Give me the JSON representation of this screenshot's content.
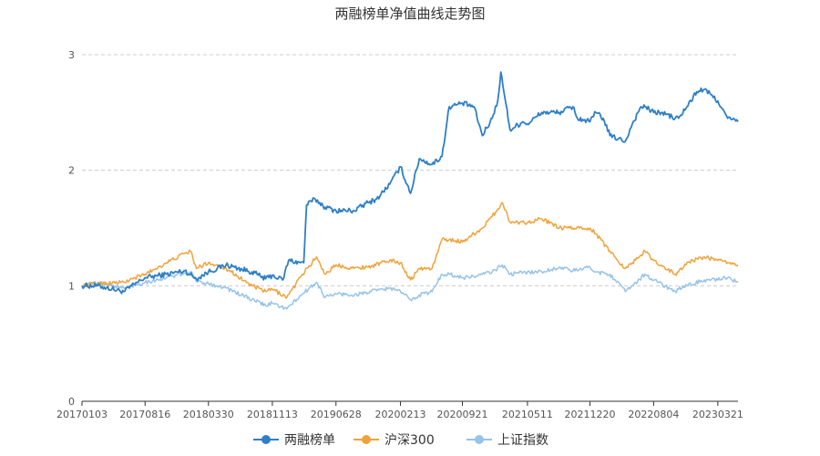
{
  "chart_data": {
    "type": "line",
    "title": "两融榜单净值曲线走势图",
    "xlabel": "",
    "ylabel": "",
    "ylim": [
      0,
      3
    ],
    "yticks": [
      0,
      1,
      2,
      3
    ],
    "grid": true,
    "legend_position": "bottom",
    "x_ticks": [
      "20170103",
      "20170816",
      "20180330",
      "20181113",
      "20190628",
      "20200213",
      "20200921",
      "20210511",
      "20211220",
      "20220804",
      "20230321"
    ],
    "x_end": "20230601",
    "series": [
      {
        "name": "两融榜单",
        "color": "#2e7fc6",
        "points": [
          [
            "20170103",
            1.0
          ],
          [
            "20170301",
            1.0
          ],
          [
            "20170601",
            0.95
          ],
          [
            "20170816",
            1.07
          ],
          [
            "20171101",
            1.1
          ],
          [
            "20180105",
            1.13
          ],
          [
            "20180215",
            1.06
          ],
          [
            "20180330",
            1.12
          ],
          [
            "20180601",
            1.18
          ],
          [
            "20180901",
            1.12
          ],
          [
            "20181020",
            1.06
          ],
          [
            "20181113",
            1.09
          ],
          [
            "20181220",
            1.05
          ],
          [
            "20190110",
            1.22
          ],
          [
            "20190220",
            1.2
          ],
          [
            "20190305",
            1.2
          ],
          [
            "20190315",
            1.7
          ],
          [
            "20190415",
            1.75
          ],
          [
            "20190520",
            1.68
          ],
          [
            "20190628",
            1.65
          ],
          [
            "20190901",
            1.65
          ],
          [
            "20191020",
            1.72
          ],
          [
            "20191120",
            1.75
          ],
          [
            "20200106",
            1.88
          ],
          [
            "20200213",
            2.03
          ],
          [
            "20200320",
            1.8
          ],
          [
            "20200420",
            2.1
          ],
          [
            "20200605",
            2.05
          ],
          [
            "20200710",
            2.12
          ],
          [
            "20200805",
            2.55
          ],
          [
            "20200921",
            2.58
          ],
          [
            "20201101",
            2.55
          ],
          [
            "20201201",
            2.3
          ],
          [
            "20210105",
            2.45
          ],
          [
            "20210125",
            2.6
          ],
          [
            "20210205",
            2.85
          ],
          [
            "20210220",
            2.62
          ],
          [
            "20210310",
            2.35
          ],
          [
            "20210425",
            2.42
          ],
          [
            "20210511",
            2.4
          ],
          [
            "20210701",
            2.5
          ],
          [
            "20210901",
            2.5
          ],
          [
            "20211020",
            2.55
          ],
          [
            "20211105",
            2.45
          ],
          [
            "20211220",
            2.42
          ],
          [
            "20220110",
            2.5
          ],
          [
            "20220205",
            2.45
          ],
          [
            "20220301",
            2.3
          ],
          [
            "20220425",
            2.25
          ],
          [
            "20220520",
            2.4
          ],
          [
            "20220620",
            2.55
          ],
          [
            "20220704",
            2.55
          ],
          [
            "20220804",
            2.5
          ],
          [
            "20220901",
            2.5
          ],
          [
            "20221020",
            2.45
          ],
          [
            "20221101",
            2.45
          ],
          [
            "20221201",
            2.55
          ],
          [
            "20230105",
            2.68
          ],
          [
            "20230201",
            2.7
          ],
          [
            "20230321",
            2.6
          ],
          [
            "20230425",
            2.45
          ],
          [
            "20230601",
            2.42
          ]
        ]
      },
      {
        "name": "沪深300",
        "color": "#f0a23a",
        "points": [
          [
            "20170103",
            1.0
          ],
          [
            "20170301",
            1.02
          ],
          [
            "20170601",
            1.03
          ],
          [
            "20170816",
            1.1
          ],
          [
            "20171101",
            1.2
          ],
          [
            "20180105",
            1.28
          ],
          [
            "20180125",
            1.3
          ],
          [
            "20180215",
            1.15
          ],
          [
            "20180330",
            1.2
          ],
          [
            "20180601",
            1.15
          ],
          [
            "20180901",
            1.0
          ],
          [
            "20181020",
            0.95
          ],
          [
            "20181113",
            0.97
          ],
          [
            "20190104",
            0.9
          ],
          [
            "20190301",
            1.1
          ],
          [
            "20190420",
            1.25
          ],
          [
            "20190520",
            1.1
          ],
          [
            "20190628",
            1.18
          ],
          [
            "20190901",
            1.15
          ],
          [
            "20191101",
            1.17
          ],
          [
            "20200106",
            1.22
          ],
          [
            "20200213",
            1.2
          ],
          [
            "20200320",
            1.05
          ],
          [
            "20200420",
            1.15
          ],
          [
            "20200605",
            1.15
          ],
          [
            "20200710",
            1.4
          ],
          [
            "20200805",
            1.4
          ],
          [
            "20200921",
            1.38
          ],
          [
            "20201101",
            1.45
          ],
          [
            "20201201",
            1.5
          ],
          [
            "20210105",
            1.6
          ],
          [
            "20210210",
            1.72
          ],
          [
            "20210310",
            1.55
          ],
          [
            "20210511",
            1.55
          ],
          [
            "20210701",
            1.58
          ],
          [
            "20210901",
            1.5
          ],
          [
            "20211020",
            1.5
          ],
          [
            "20211220",
            1.5
          ],
          [
            "20220110",
            1.45
          ],
          [
            "20220301",
            1.3
          ],
          [
            "20220425",
            1.15
          ],
          [
            "20220520",
            1.2
          ],
          [
            "20220704",
            1.3
          ],
          [
            "20220804",
            1.22
          ],
          [
            "20221020",
            1.1
          ],
          [
            "20221101",
            1.12
          ],
          [
            "20221201",
            1.2
          ],
          [
            "20230201",
            1.25
          ],
          [
            "20230321",
            1.22
          ],
          [
            "20230425",
            1.2
          ],
          [
            "20230601",
            1.18
          ]
        ]
      },
      {
        "name": "上证指数",
        "color": "#96c3e8",
        "points": [
          [
            "20170103",
            1.0
          ],
          [
            "20170301",
            1.03
          ],
          [
            "20170601",
            0.98
          ],
          [
            "20170816",
            1.03
          ],
          [
            "20171101",
            1.07
          ],
          [
            "20180125",
            1.12
          ],
          [
            "20180215",
            1.04
          ],
          [
            "20180330",
            1.02
          ],
          [
            "20180601",
            0.98
          ],
          [
            "20180901",
            0.88
          ],
          [
            "20181020",
            0.83
          ],
          [
            "20181113",
            0.85
          ],
          [
            "20190104",
            0.8
          ],
          [
            "20190301",
            0.93
          ],
          [
            "20190420",
            1.03
          ],
          [
            "20190520",
            0.9
          ],
          [
            "20190628",
            0.93
          ],
          [
            "20190901",
            0.92
          ],
          [
            "20191101",
            0.95
          ],
          [
            "20200106",
            0.98
          ],
          [
            "20200213",
            0.95
          ],
          [
            "20200320",
            0.88
          ],
          [
            "20200420",
            0.92
          ],
          [
            "20200605",
            0.95
          ],
          [
            "20200710",
            1.1
          ],
          [
            "20200805",
            1.1
          ],
          [
            "20200921",
            1.07
          ],
          [
            "20201101",
            1.08
          ],
          [
            "20201201",
            1.1
          ],
          [
            "20210105",
            1.12
          ],
          [
            "20210210",
            1.18
          ],
          [
            "20210310",
            1.1
          ],
          [
            "20210511",
            1.12
          ],
          [
            "20210701",
            1.12
          ],
          [
            "20210901",
            1.16
          ],
          [
            "20211020",
            1.13
          ],
          [
            "20211220",
            1.16
          ],
          [
            "20220110",
            1.12
          ],
          [
            "20220301",
            1.1
          ],
          [
            "20220425",
            0.95
          ],
          [
            "20220520",
            1.0
          ],
          [
            "20220704",
            1.1
          ],
          [
            "20220804",
            1.05
          ],
          [
            "20221020",
            0.95
          ],
          [
            "20221101",
            0.97
          ],
          [
            "20221201",
            1.0
          ],
          [
            "20230201",
            1.05
          ],
          [
            "20230321",
            1.05
          ],
          [
            "20230425",
            1.07
          ],
          [
            "20230601",
            1.03
          ]
        ]
      }
    ]
  }
}
